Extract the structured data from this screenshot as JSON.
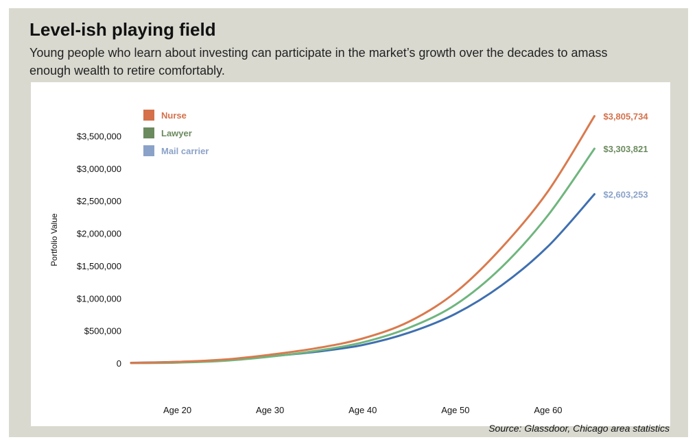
{
  "header": {
    "title": "Level-ish playing field",
    "subtitle": "Young people who learn about investing can participate in the market’s growth over the decades to amass enough wealth to retire comfortably."
  },
  "source": "Source: Glassdoor, Chicago area statistics",
  "chart_data": {
    "type": "line",
    "ylabel": "Portfolio Value",
    "xlabel": "",
    "x_ticks": [
      20,
      30,
      40,
      50,
      60
    ],
    "x_tick_labels": [
      "Age 20",
      "Age 30",
      "Age 40",
      "Age 50",
      "Age 60"
    ],
    "xlim": [
      15,
      66
    ],
    "y_ticks": [
      0,
      500000,
      1000000,
      1500000,
      2000000,
      2500000,
      3000000,
      3500000
    ],
    "y_tick_labels": [
      "0",
      "$500,000",
      "$1,000,000",
      "$1,500,000",
      "$2,000,000",
      "$2,500,000",
      "$3,000,000",
      "$3,500,000"
    ],
    "ylim": [
      0,
      3800000
    ],
    "grid": false,
    "legend_position": "top-left",
    "x": [
      15,
      20,
      25,
      30,
      35,
      40,
      45,
      50,
      55,
      60,
      65
    ],
    "series": [
      {
        "name": "Nurse",
        "color": "#d97a4e",
        "legend_color": "#d4704a",
        "end_label": "$3,805,734",
        "values": [
          2000,
          20000,
          55000,
          130000,
          230000,
          380000,
          640000,
          1090000,
          1780000,
          2650000,
          3805734
        ]
      },
      {
        "name": "Lawyer",
        "color": "#6fb57e",
        "legend_color": "#6b8a5e",
        "end_label": "$3,303,821",
        "values": [
          1000,
          8000,
          35000,
          100000,
          190000,
          320000,
          545000,
          900000,
          1480000,
          2280000,
          3303821
        ]
      },
      {
        "name": "Mail carrier",
        "color": "#3f6fb0",
        "legend_color": "#8aa2c8",
        "end_label": "$2,603,253",
        "values": [
          5000,
          20000,
          45000,
          105000,
          175000,
          280000,
          470000,
          760000,
          1200000,
          1800000,
          2603253
        ]
      }
    ]
  }
}
